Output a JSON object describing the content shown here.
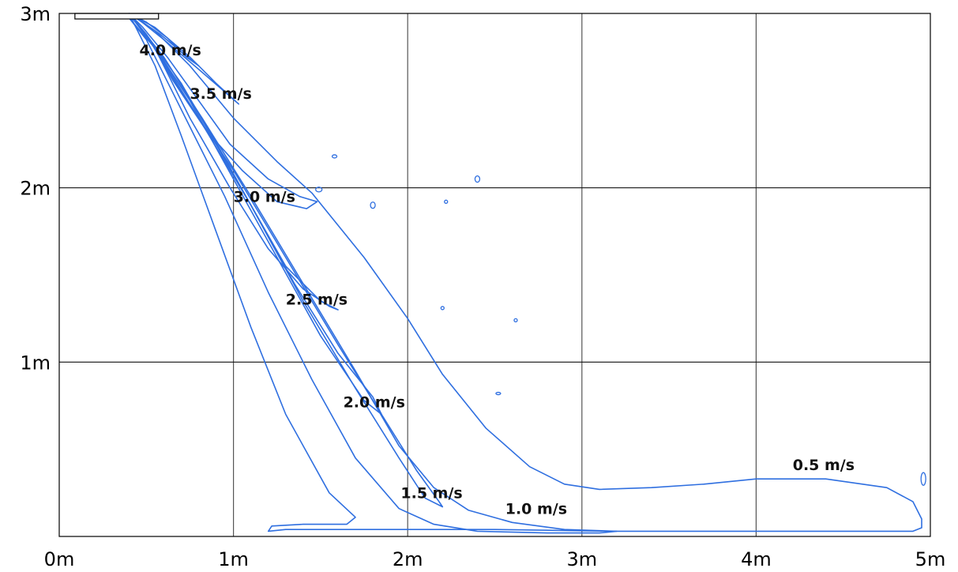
{
  "chart_data": {
    "type": "line",
    "title": "",
    "xlabel": "",
    "ylabel": "",
    "xlim": [
      0,
      5
    ],
    "ylim": [
      0,
      3
    ],
    "grid": true,
    "line_color": "#2f6fe0",
    "x_ticks": [
      {
        "value": 0,
        "label": "0m"
      },
      {
        "value": 1,
        "label": "1m"
      },
      {
        "value": 2,
        "label": "2m"
      },
      {
        "value": 3,
        "label": "3m"
      },
      {
        "value": 4,
        "label": "4m"
      },
      {
        "value": 5,
        "label": "5m"
      }
    ],
    "y_ticks": [
      {
        "value": 1,
        "label": "1m"
      },
      {
        "value": 2,
        "label": "2m"
      },
      {
        "value": 3,
        "label": "3m"
      }
    ],
    "annotations": [
      {
        "text": "4.0 m/s",
        "x": 0.46,
        "y": 2.76
      },
      {
        "text": "3.5 m/s",
        "x": 0.75,
        "y": 2.51
      },
      {
        "text": "3.0 m/s",
        "x": 1.0,
        "y": 1.92
      },
      {
        "text": "2.5 m/s",
        "x": 1.3,
        "y": 1.33
      },
      {
        "text": "2.0 m/s",
        "x": 1.63,
        "y": 0.74
      },
      {
        "text": "1.5 m/s",
        "x": 1.96,
        "y": 0.22
      },
      {
        "text": "1.0 m/s",
        "x": 2.56,
        "y": 0.13
      },
      {
        "text": "0.5 m/s",
        "x": 4.21,
        "y": 0.38
      }
    ],
    "series": [
      {
        "level": 4.0,
        "x": [
          0.4,
          0.5,
          0.62,
          0.73,
          0.8,
          0.7,
          0.58,
          0.45,
          0.4
        ],
        "y": [
          3.0,
          2.95,
          2.86,
          2.75,
          2.7,
          2.78,
          2.88,
          2.97,
          3.0
        ]
      },
      {
        "level": 3.5,
        "x": [
          0.4,
          0.55,
          0.75,
          0.9,
          1.03,
          0.95,
          0.8,
          0.6,
          0.45,
          0.4
        ],
        "y": [
          3.0,
          2.92,
          2.75,
          2.6,
          2.48,
          2.55,
          2.68,
          2.85,
          2.97,
          3.0
        ]
      },
      {
        "level": 3.0,
        "x": [
          0.4,
          0.48,
          0.62,
          0.8,
          0.98,
          1.2,
          1.38,
          1.48,
          1.42,
          1.25,
          1.05,
          0.85,
          0.65,
          0.5,
          0.4
        ],
        "y": [
          3.0,
          2.92,
          2.75,
          2.5,
          2.25,
          2.05,
          1.95,
          1.92,
          1.88,
          1.92,
          2.1,
          2.32,
          2.62,
          2.88,
          3.0
        ]
      },
      {
        "level": 2.5,
        "x": [
          0.4,
          0.5,
          0.7,
          0.9,
          1.1,
          1.3,
          1.5,
          1.6,
          1.55,
          1.4,
          1.2,
          0.98,
          0.75,
          0.55,
          0.4
        ],
        "y": [
          3.0,
          2.88,
          2.6,
          2.25,
          1.9,
          1.55,
          1.35,
          1.3,
          1.32,
          1.42,
          1.65,
          2.0,
          2.4,
          2.8,
          3.0
        ]
      },
      {
        "level": 2.0,
        "x": [
          0.4,
          0.52,
          0.75,
          1.0,
          1.25,
          1.5,
          1.75,
          1.85,
          1.8,
          1.6,
          1.35,
          1.1,
          0.85,
          0.6,
          0.4
        ],
        "y": [
          3.0,
          2.85,
          2.5,
          2.05,
          1.6,
          1.15,
          0.78,
          0.7,
          0.8,
          1.05,
          1.45,
          1.9,
          2.35,
          2.75,
          3.0
        ]
      },
      {
        "level": 1.5,
        "x": [
          0.4,
          0.55,
          0.8,
          1.1,
          1.4,
          1.7,
          1.95,
          2.1,
          2.2,
          2.18,
          2.05,
          1.85,
          1.6,
          1.3,
          1.0,
          0.7,
          0.5,
          0.4
        ],
        "y": [
          3.0,
          2.8,
          2.4,
          1.9,
          1.35,
          0.85,
          0.45,
          0.22,
          0.17,
          0.2,
          0.38,
          0.7,
          1.1,
          1.6,
          2.1,
          2.55,
          2.88,
          3.0
        ]
      },
      {
        "level": 1.0,
        "x": [
          0.38,
          0.55,
          0.82,
          1.1,
          1.4,
          1.7,
          1.95,
          2.15,
          2.35,
          2.6,
          2.9,
          3.2,
          3.1,
          2.8,
          2.4,
          2.15,
          1.95,
          1.7,
          1.45,
          1.2,
          0.95,
          0.7,
          0.5,
          0.38
        ],
        "y": [
          3.0,
          2.8,
          2.4,
          1.95,
          1.45,
          0.95,
          0.52,
          0.28,
          0.15,
          0.08,
          0.04,
          0.03,
          0.02,
          0.02,
          0.03,
          0.07,
          0.16,
          0.45,
          0.9,
          1.4,
          1.95,
          2.45,
          2.85,
          3.0
        ]
      },
      {
        "level": 0.5,
        "x": [
          0.4,
          0.55,
          0.75,
          1.0,
          1.25,
          1.45,
          1.75,
          2.0,
          2.2,
          2.45,
          2.7,
          2.9,
          3.1,
          3.4,
          3.7,
          4.0,
          4.4,
          4.75,
          4.9,
          4.95,
          4.95,
          4.9,
          4.5,
          4.0,
          3.5,
          3.2,
          2.5,
          1.8,
          1.3,
          1.2,
          1.22,
          1.4,
          1.65,
          1.7,
          1.55,
          1.3,
          1.1,
          0.9,
          0.7,
          0.55,
          0.45,
          0.4
        ],
        "y": [
          3.0,
          2.9,
          2.7,
          2.4,
          2.15,
          1.97,
          1.6,
          1.25,
          0.93,
          0.62,
          0.4,
          0.3,
          0.27,
          0.28,
          0.3,
          0.33,
          0.33,
          0.28,
          0.2,
          0.1,
          0.05,
          0.03,
          0.03,
          0.03,
          0.03,
          0.03,
          0.04,
          0.04,
          0.04,
          0.03,
          0.06,
          0.07,
          0.07,
          0.11,
          0.25,
          0.7,
          1.2,
          1.75,
          2.3,
          2.7,
          2.9,
          3.0
        ]
      }
    ]
  }
}
